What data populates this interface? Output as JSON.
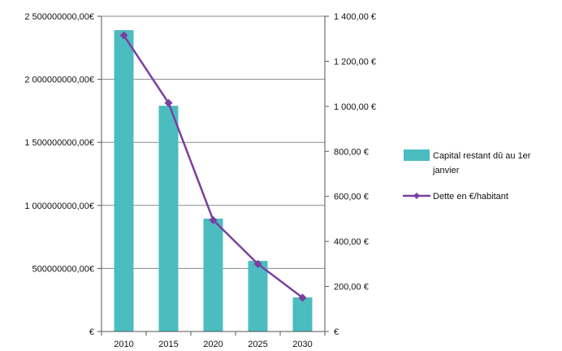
{
  "chart_data": {
    "type": "bar",
    "categories": [
      "2010",
      "2015",
      "2020",
      "2025",
      "2030"
    ],
    "series": [
      {
        "name": "Capital restant dû au 1er janvier",
        "type": "bar",
        "axis": "left",
        "color": "#4bbcc0",
        "values": [
          2390000000,
          1790000000,
          895000000,
          560000000,
          270000000
        ]
      },
      {
        "name": "Dette en €/habitant",
        "type": "line",
        "axis": "right",
        "color": "#7a3fa0",
        "values": [
          1315,
          1015,
          495,
          300,
          150
        ]
      }
    ],
    "y_left": {
      "ylim": [
        0,
        2500000000
      ],
      "ticks": [
        0,
        500000000,
        1000000000,
        1500000000,
        2000000000,
        2500000000
      ],
      "tick_labels": [
        "€",
        "500000000,00€",
        "1 000000000,00€",
        "1 500000000,00€",
        "2 000000000,00€",
        "2 500000000,00€"
      ]
    },
    "y_right": {
      "ylim": [
        0,
        1400
      ],
      "ticks": [
        0,
        200,
        400,
        600,
        800,
        1000,
        1200,
        1400
      ],
      "tick_labels": [
        "€",
        "200,00 €",
        "400,00 €",
        "600,00 €",
        "800,00 €",
        "1 000,00 €",
        "1 200,00 €",
        "1 400,00 €"
      ]
    },
    "grid": true,
    "legend": "right",
    "legend_labels": [
      "Capital restant dû au 1er",
      "janvier",
      "Dette en €/habitant"
    ]
  }
}
